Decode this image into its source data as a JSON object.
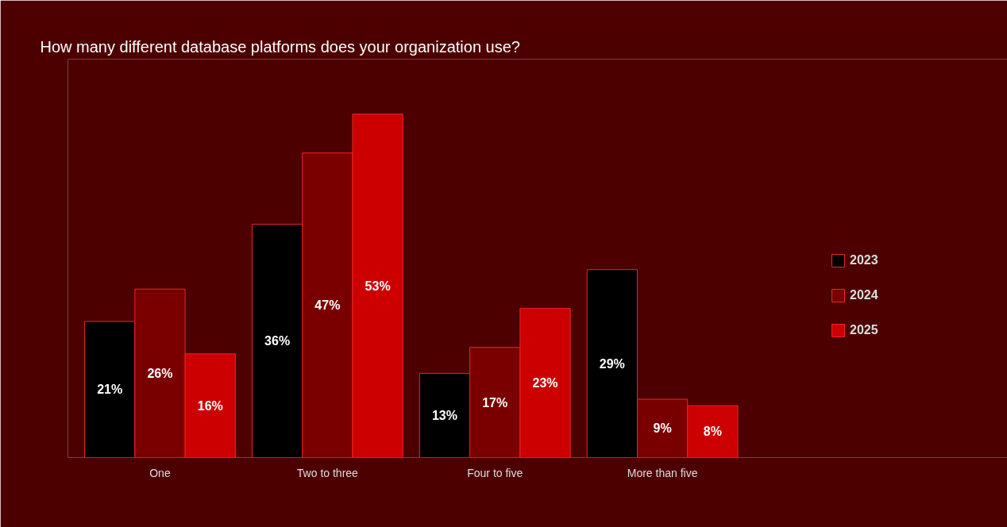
{
  "chart_data": {
    "type": "bar",
    "title": "How many different database platforms does your organization use?",
    "categories": [
      "One",
      "Two to three",
      "Four to five",
      "More than five"
    ],
    "series": [
      {
        "name": "2023",
        "color": "#000000",
        "values": [
          21,
          36,
          13,
          29
        ],
        "value_labels": [
          "21%",
          "36%",
          "13%",
          "29%"
        ]
      },
      {
        "name": "2024",
        "color": "#7a0000",
        "values": [
          26,
          47,
          17,
          9
        ],
        "value_labels": [
          "26%",
          "47%",
          "17%",
          "9%"
        ]
      },
      {
        "name": "2025",
        "color": "#cc0000",
        "values": [
          16,
          53,
          23,
          8
        ],
        "value_labels": [
          "16%",
          "53%",
          "23%",
          "8%"
        ]
      }
    ],
    "legend": "right",
    "grid": false
  }
}
